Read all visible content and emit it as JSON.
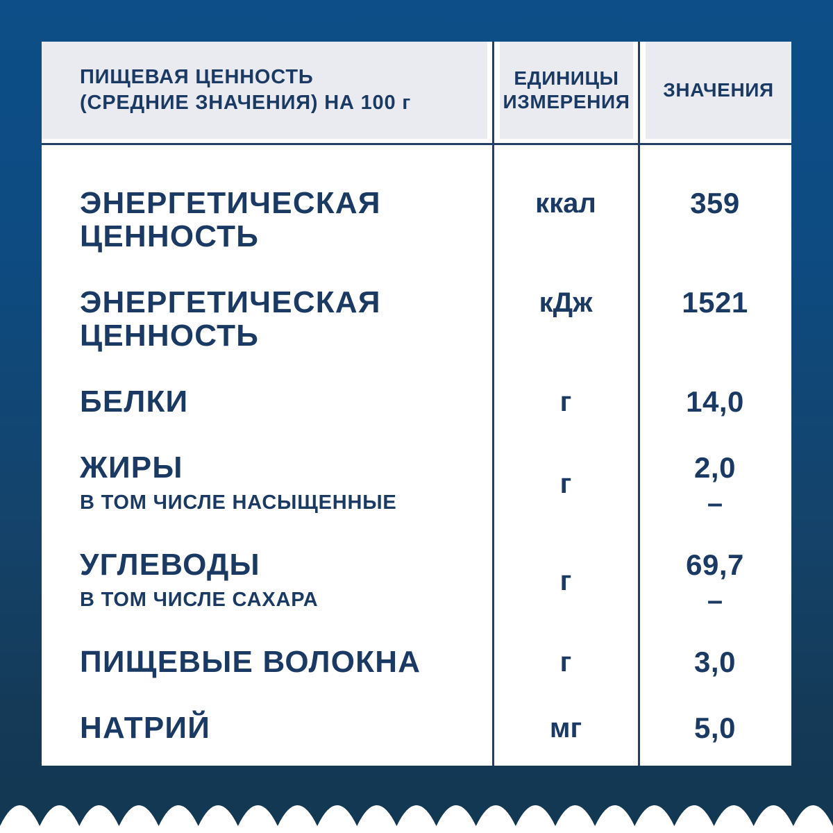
{
  "colors": {
    "bg-top": "#0d4e88",
    "bg-bottom": "#123752",
    "card-bg": "#ffffff",
    "header-bg": "#e9ebf0",
    "navy": "#1a3a64",
    "line": "#20406a",
    "wave": "#ffffff"
  },
  "table": {
    "header": {
      "title_line1": "ПИЩЕВАЯ ЦЕННОСТЬ",
      "title_line2": "(СРЕДНИЕ ЗНАЧЕНИЯ) НА 100 г",
      "units_line1": "ЕДИНИЦЫ",
      "units_line2": "ИЗМЕРЕНИЯ",
      "values": "ЗНАЧЕНИЯ"
    },
    "rows": [
      {
        "label": "ЭНЕРГЕТИЧЕСКАЯ ЦЕННОСТЬ",
        "sub": "",
        "unit": "ккал",
        "value": "359",
        "value2": ""
      },
      {
        "label": "ЭНЕРГЕТИЧЕСКАЯ ЦЕННОСТЬ",
        "sub": "",
        "unit": "кДж",
        "value": "1521",
        "value2": ""
      },
      {
        "label": "БЕЛКИ",
        "sub": "",
        "unit": "г",
        "value": "14,0",
        "value2": ""
      },
      {
        "label": "ЖИРЫ",
        "sub": "В ТОМ ЧИСЛЕ НАСЫЩЕННЫЕ",
        "unit": "г",
        "value": "2,0",
        "value2": "–"
      },
      {
        "label": "УГЛЕВОДЫ",
        "sub": "В ТОМ ЧИСЛЕ САХАРА",
        "unit": "г",
        "value": "69,7",
        "value2": "–"
      },
      {
        "label": "ПИЩЕВЫЕ ВОЛОКНА",
        "sub": "",
        "unit": "г",
        "value": "3,0",
        "value2": ""
      },
      {
        "label": "НАТРИЙ",
        "sub": "",
        "unit": "мг",
        "value": "5,0",
        "value2": ""
      }
    ]
  }
}
